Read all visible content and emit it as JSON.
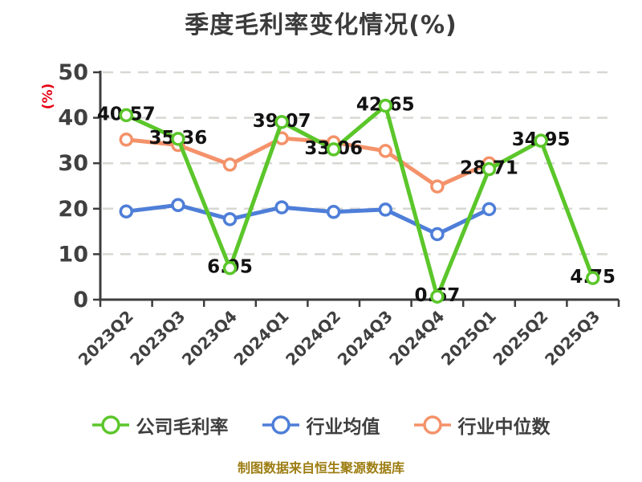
{
  "title": "季度毛利率变化情况(%)",
  "y_axis_unit": "(%)",
  "footer": "制图数据来自恒生聚源数据库",
  "colors": {
    "company": "#5bc62a",
    "industry_avg": "#4e7ed8",
    "industry_median": "#f4926a",
    "grid": "#d7d7d3",
    "axis": "#3d3d3d",
    "tick_label": "#404040",
    "data_label": "#121212",
    "title_text": "#3b3b3b",
    "unit_red": "#e60012",
    "footer_text": "#9d7d12",
    "background": "#ffffff"
  },
  "chart_data": {
    "type": "line",
    "title": "季度毛利率变化情况(%)",
    "categories": [
      "2023Q2",
      "2023Q3",
      "2023Q4",
      "2024Q1",
      "2024Q2",
      "2024Q3",
      "2024Q4",
      "2025Q1",
      "2025Q2",
      "2025Q3"
    ],
    "series": [
      {
        "name": "公司毛利率",
        "color": "#5bc62a",
        "labeled": true,
        "values": [
          40.57,
          35.36,
          6.95,
          39.07,
          33.06,
          42.65,
          0.67,
          28.71,
          34.95,
          4.75
        ]
      },
      {
        "name": "行业均值",
        "color": "#4e7ed8",
        "labeled": false,
        "values": [
          19.4,
          20.8,
          17.7,
          20.3,
          19.3,
          19.8,
          14.4,
          19.9
        ]
      },
      {
        "name": "行业中位数",
        "color": "#f4926a",
        "labeled": false,
        "values": [
          35.2,
          34.0,
          29.7,
          35.5,
          34.6,
          32.7,
          24.9,
          30.0
        ]
      }
    ],
    "xlabel": "",
    "ylabel": "(%)",
    "ylim": [
      0,
      50
    ],
    "yticks": [
      0,
      10,
      20,
      30,
      40,
      50
    ],
    "grid": "horizontal-dashed",
    "legend_position": "bottom",
    "marker": "circle-white-fill"
  }
}
